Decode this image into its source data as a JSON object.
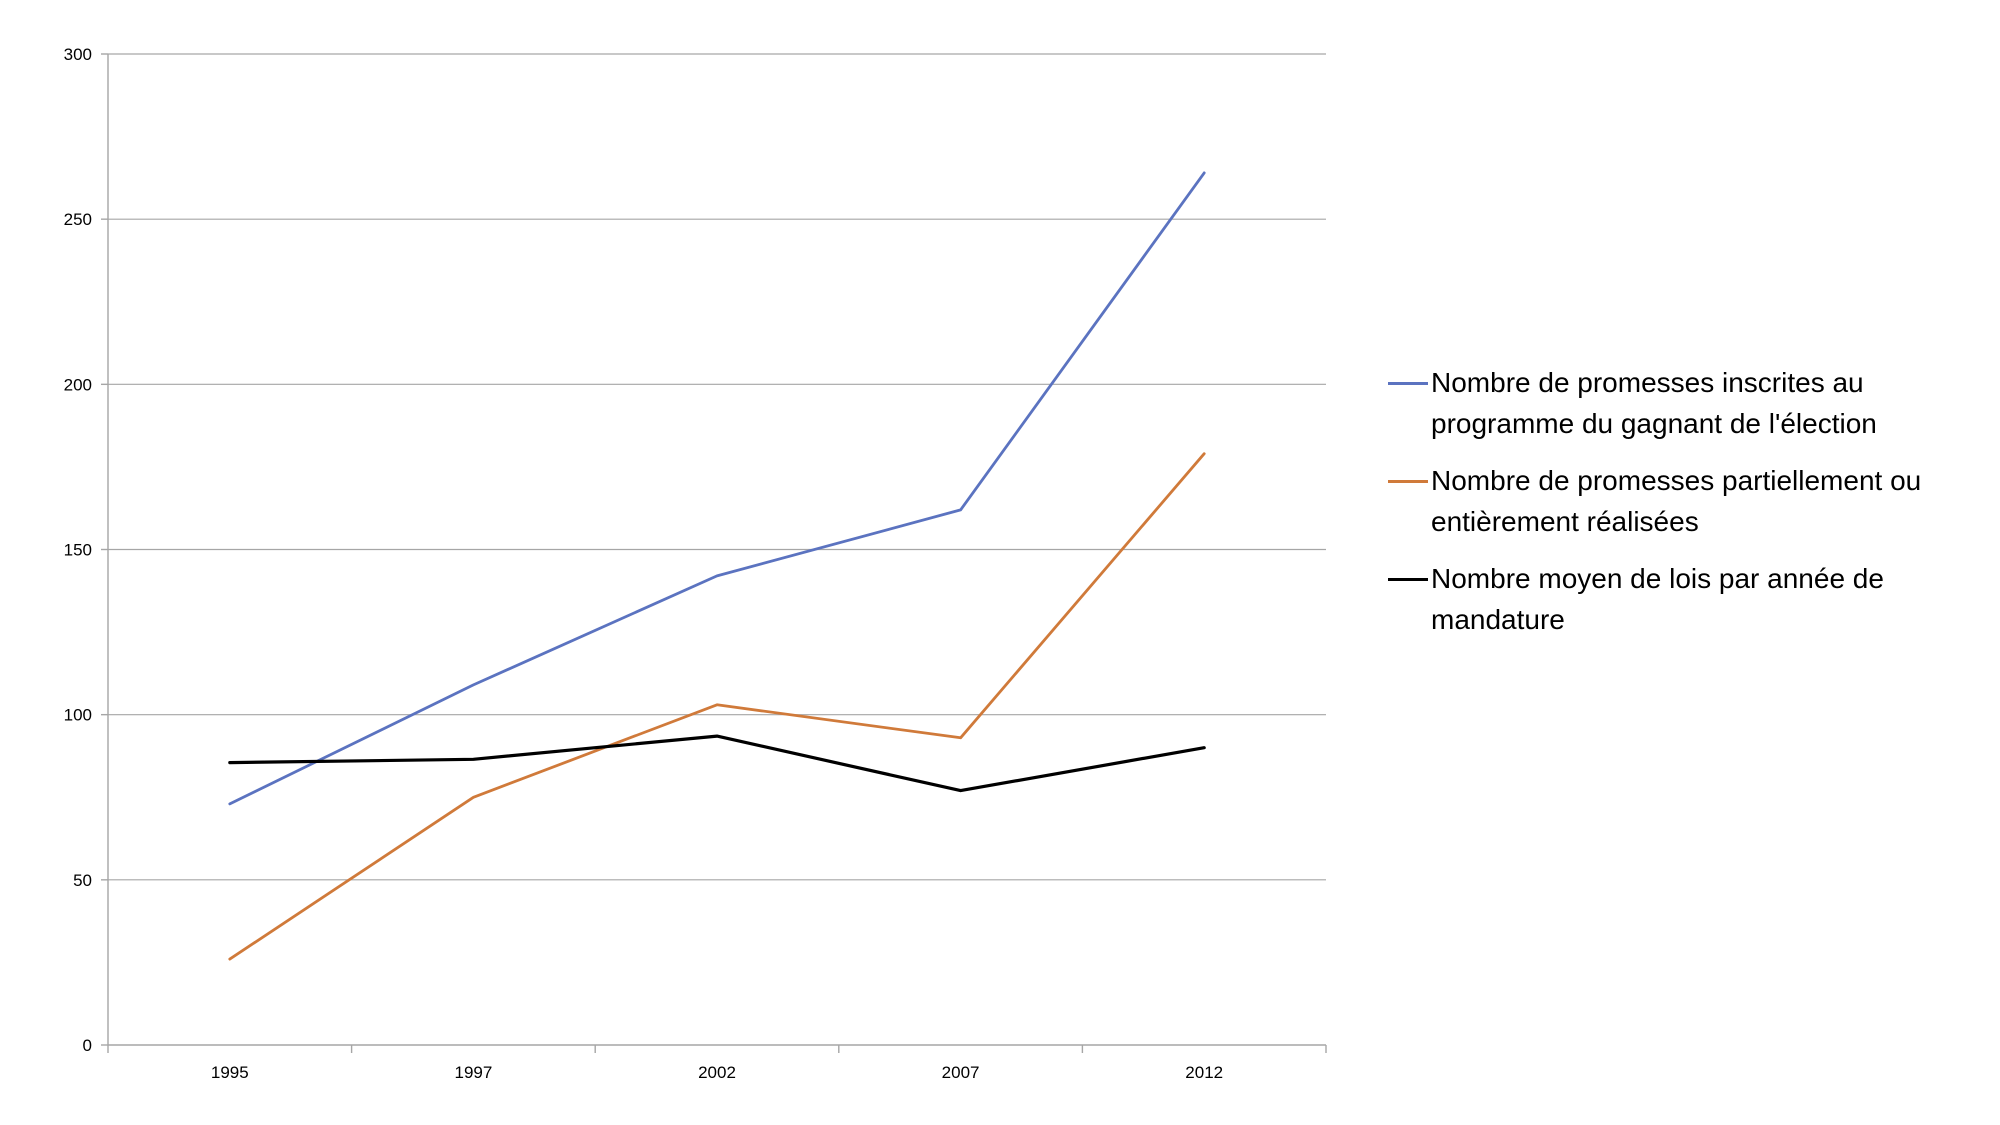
{
  "chart_data": {
    "type": "line",
    "title": "",
    "xlabel": "",
    "ylabel": "",
    "categories": [
      "1995",
      "1997",
      "2002",
      "2007",
      "2012"
    ],
    "ylim": [
      0,
      300
    ],
    "yticks": [
      "0",
      "50",
      "100",
      "150",
      "200",
      "250",
      "300"
    ],
    "grid": true,
    "legend_position": "right",
    "series": [
      {
        "name": "Nombre de promesses inscrites au programme du gagnant de l'élection",
        "color": "#5b73c0",
        "values": [
          73,
          109,
          142,
          162,
          264
        ]
      },
      {
        "name": "Nombre de promesses partiellement ou entièrement réalisées",
        "color": "#d07a3a",
        "values": [
          26,
          75,
          103,
          93,
          179
        ]
      },
      {
        "name": "Nombre moyen de lois par année de mandature",
        "color": "#000000",
        "values": [
          85.5,
          86.5,
          93.5,
          77,
          90
        ]
      }
    ]
  }
}
